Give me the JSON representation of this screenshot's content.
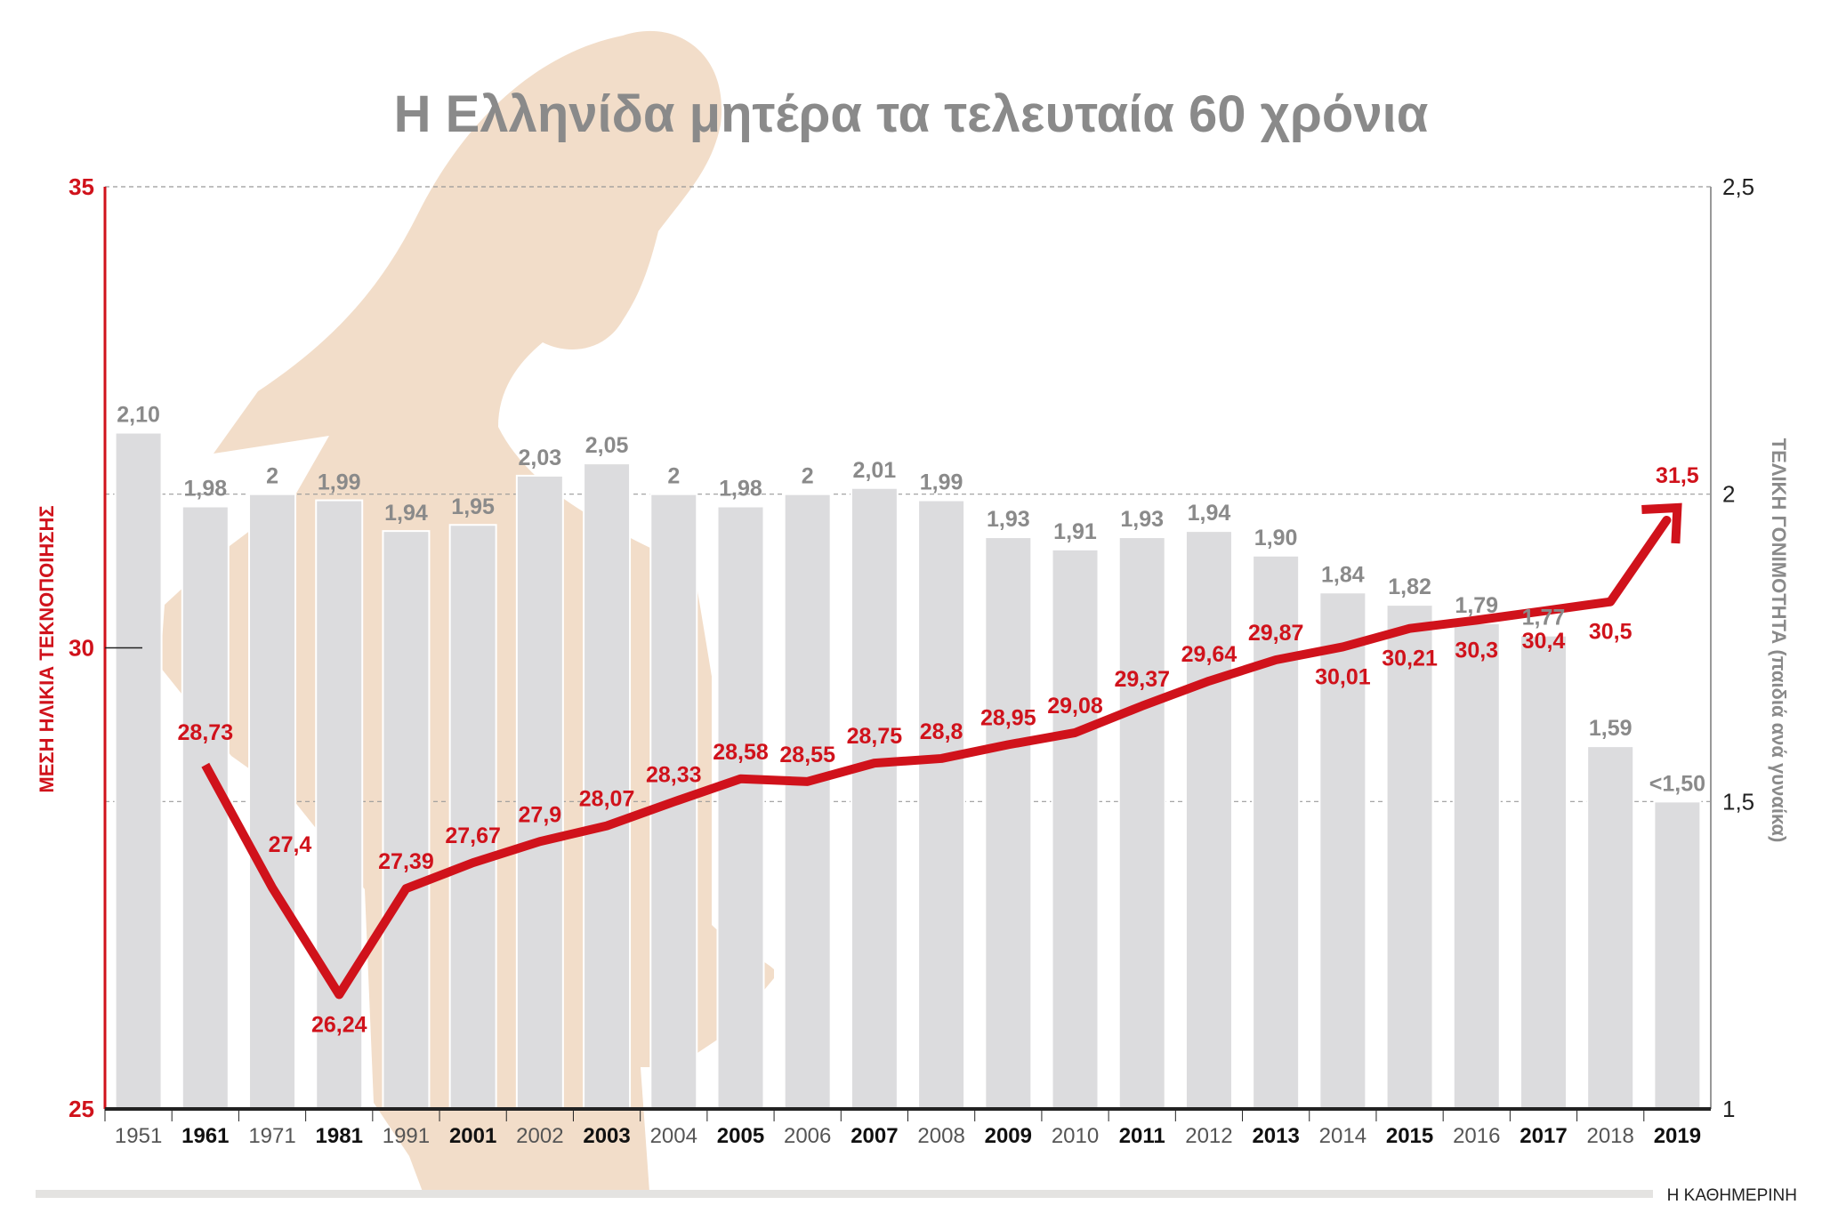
{
  "chart_data": {
    "type": "bar+line",
    "title": "Η Ελληνίδα μητέρα τα τελευταία 60 χρόνια",
    "categories": [
      "1951",
      "1961",
      "1971",
      "1981",
      "1991",
      "2001",
      "2002",
      "2003",
      "2004",
      "2005",
      "2006",
      "2007",
      "2008",
      "2009",
      "2010",
      "2011",
      "2012",
      "2013",
      "2014",
      "2015",
      "2016",
      "2017",
      "2018",
      "2019"
    ],
    "left_axis": {
      "label": "ΜΕΣΗ ΗΛΙΚΙΑ ΤΕΚΝΟΠΟΙΗΣΗΣ",
      "range": [
        25,
        35
      ],
      "ticks": [
        "25",
        "30",
        "35"
      ],
      "color": "#d0121b"
    },
    "right_axis": {
      "label": "ΤΕΛΙΚΗ ΓΟΝΙΜΟΤΗΤΑ  (παιδιά ανά γυναίκα)",
      "range": [
        1,
        2.5
      ],
      "ticks": [
        "1",
        "1,5",
        "2",
        "2,5"
      ],
      "color": "#8a8a8a"
    },
    "bars": {
      "axis": "right",
      "values": [
        2.1,
        1.98,
        2,
        1.99,
        1.94,
        1.95,
        2.03,
        2.05,
        2,
        1.98,
        2,
        2.01,
        1.99,
        1.93,
        1.91,
        1.93,
        1.94,
        1.9,
        1.84,
        1.82,
        1.79,
        1.77,
        1.59,
        1.5
      ],
      "labels": [
        "2,10",
        "1,98",
        "2",
        "1,99",
        "1,94",
        "1,95",
        "2,03",
        "2,05",
        "2",
        "1,98",
        "2",
        "2,01",
        "1,99",
        "1,93",
        "1,91",
        "1,93",
        "1,94",
        "1,90",
        "1,84",
        "1,82",
        "1,79",
        "1,77",
        "1,59",
        "<1,50"
      ],
      "color": "#dcdcde"
    },
    "line": {
      "axis": "left",
      "values": [
        null,
        28.73,
        27.4,
        26.24,
        27.39,
        27.67,
        27.9,
        28.07,
        28.33,
        28.58,
        28.55,
        28.75,
        28.8,
        28.95,
        29.08,
        29.37,
        29.64,
        29.87,
        30.01,
        30.21,
        30.3,
        30.4,
        30.5,
        31.5
      ],
      "labels": [
        "",
        "28,73",
        "27,4",
        "26,24",
        "27,39",
        "27,67",
        "27,9",
        "28,07",
        "28,33",
        "28,58",
        "28,55",
        "28,75",
        "28,8",
        "28,95",
        "29,08",
        "29,37",
        "29,64",
        "29,87",
        "30,01",
        "30,21",
        "30,3",
        "30,4",
        "30,5",
        "31,5"
      ],
      "color": "#d0121b"
    },
    "grid": "dashed at 35 / 2 / 1,5",
    "silhouette_color": "#f2ddc9"
  },
  "footer": {
    "source": "Η ΚΑΘΗΜΕΡΙΝΗ"
  }
}
